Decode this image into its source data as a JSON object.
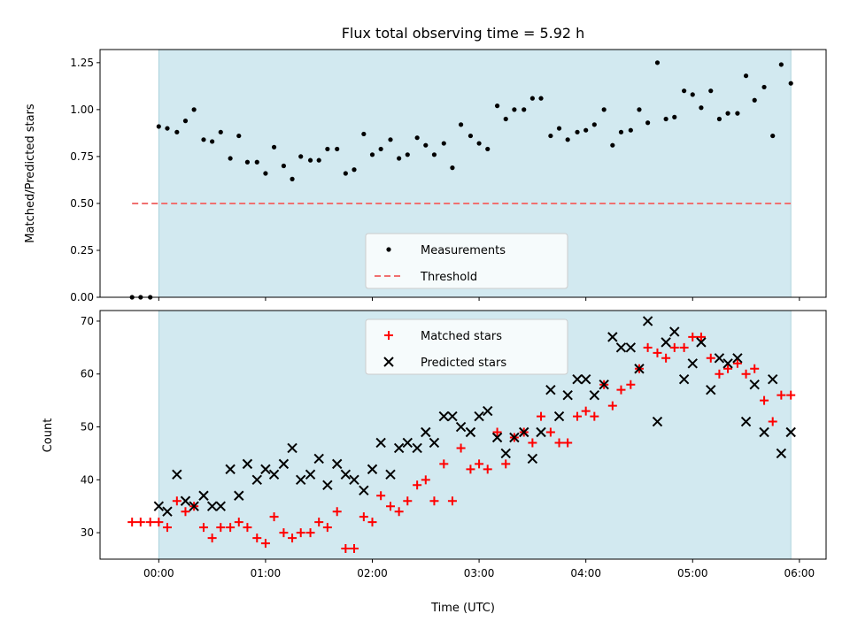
{
  "chart_data": [
    {
      "type": "scatter",
      "title": "Flux total observing time = 5.92 h",
      "xlabel": "",
      "ylabel": "Matched/Predicted stars",
      "xlim": [
        -0.55,
        6.25
      ],
      "ylim": [
        0.0,
        1.32
      ],
      "yticks": [
        0.0,
        0.25,
        0.5,
        0.75,
        1.0,
        1.25
      ],
      "ytick_labels": [
        "0.00",
        "0.25",
        "0.50",
        "0.75",
        "1.00",
        "1.25"
      ],
      "xticks": [
        0,
        1,
        2,
        3,
        4,
        5,
        6
      ],
      "observing_window": [
        0.0,
        5.92
      ],
      "observing_window_color": "#d2e9f0",
      "legend_position": "lower center",
      "series": [
        {
          "name": "Measurements",
          "marker": "dot",
          "color": "#000000",
          "x": [
            -0.25,
            -0.17,
            -0.08,
            0.0,
            0.08,
            0.17,
            0.25,
            0.33,
            0.42,
            0.5,
            0.58,
            0.67,
            0.75,
            0.83,
            0.92,
            1.0,
            1.08,
            1.17,
            1.25,
            1.33,
            1.42,
            1.5,
            1.58,
            1.67,
            1.75,
            1.83,
            1.92,
            2.0,
            2.08,
            2.17,
            2.25,
            2.33,
            2.42,
            2.5,
            2.58,
            2.67,
            2.75,
            2.83,
            2.92,
            3.0,
            3.08,
            3.17,
            3.25,
            3.33,
            3.42,
            3.5,
            3.58,
            3.67,
            3.75,
            3.83,
            3.92,
            4.0,
            4.08,
            4.17,
            4.25,
            4.33,
            4.42,
            4.5,
            4.58,
            4.67,
            4.75,
            4.83,
            4.92,
            5.0,
            5.08,
            5.17,
            5.25,
            5.33,
            5.42,
            5.5,
            5.58,
            5.67,
            5.75,
            5.83,
            5.92
          ],
          "y": [
            0.0,
            0.0,
            0.0,
            0.91,
            0.9,
            0.88,
            0.94,
            1.0,
            0.84,
            0.83,
            0.88,
            0.74,
            0.86,
            0.72,
            0.72,
            0.66,
            0.8,
            0.7,
            0.63,
            0.75,
            0.73,
            0.73,
            0.79,
            0.79,
            0.66,
            0.68,
            0.87,
            0.76,
            0.79,
            0.84,
            0.74,
            0.76,
            0.85,
            0.81,
            0.76,
            0.82,
            0.69,
            0.92,
            0.86,
            0.82,
            0.79,
            1.02,
            0.95,
            1.0,
            1.0,
            1.06,
            1.06,
            0.86,
            0.9,
            0.84,
            0.88,
            0.89,
            0.92,
            1.0,
            0.81,
            0.88,
            0.89,
            1.0,
            0.93,
            1.25,
            0.95,
            0.96,
            1.1,
            1.08,
            1.01,
            1.1,
            0.95,
            0.98,
            0.98,
            1.18,
            1.05,
            1.12,
            0.86,
            1.24,
            1.14
          ]
        },
        {
          "name": "Threshold",
          "style": "dashed",
          "color": "#f07070",
          "x": [
            -0.25,
            5.92
          ],
          "y": [
            0.5,
            0.5
          ]
        }
      ]
    },
    {
      "type": "scatter",
      "title": "",
      "xlabel": "Time (UTC)",
      "ylabel": "Count",
      "xlim": [
        -0.55,
        6.25
      ],
      "ylim": [
        25,
        72
      ],
      "yticks": [
        30,
        40,
        50,
        60,
        70
      ],
      "ytick_labels": [
        "30",
        "40",
        "50",
        "60",
        "70"
      ],
      "xticks": [
        0,
        1,
        2,
        3,
        4,
        5,
        6
      ],
      "xtick_labels": [
        "00:00",
        "01:00",
        "02:00",
        "03:00",
        "04:00",
        "05:00",
        "06:00"
      ],
      "observing_window": [
        0.0,
        5.92
      ],
      "observing_window_color": "#d2e9f0",
      "legend_position": "upper center",
      "series": [
        {
          "name": "Matched stars",
          "marker": "plus",
          "color": "#ff0000",
          "x": [
            -0.25,
            -0.17,
            -0.08,
            0.0,
            0.08,
            0.17,
            0.25,
            0.33,
            0.42,
            0.5,
            0.58,
            0.67,
            0.75,
            0.83,
            0.92,
            1.0,
            1.08,
            1.17,
            1.25,
            1.33,
            1.42,
            1.5,
            1.58,
            1.67,
            1.75,
            1.83,
            1.92,
            2.0,
            2.08,
            2.17,
            2.25,
            2.33,
            2.42,
            2.5,
            2.58,
            2.67,
            2.75,
            2.83,
            2.92,
            3.0,
            3.08,
            3.17,
            3.25,
            3.33,
            3.42,
            3.5,
            3.58,
            3.67,
            3.75,
            3.83,
            3.92,
            4.0,
            4.08,
            4.17,
            4.25,
            4.33,
            4.42,
            4.5,
            4.58,
            4.67,
            4.75,
            4.83,
            4.92,
            5.0,
            5.08,
            5.17,
            5.25,
            5.33,
            5.42,
            5.5,
            5.58,
            5.67,
            5.75,
            5.83,
            5.92
          ],
          "y": [
            32,
            32,
            32,
            32,
            31,
            36,
            34,
            35,
            31,
            29,
            31,
            31,
            32,
            31,
            29,
            28,
            33,
            30,
            29,
            30,
            30,
            32,
            31,
            34,
            27,
            27,
            33,
            32,
            37,
            35,
            34,
            36,
            39,
            40,
            36,
            43,
            36,
            46,
            42,
            43,
            42,
            49,
            43,
            48,
            49,
            47,
            52,
            49,
            47,
            47,
            52,
            53,
            52,
            58,
            54,
            57,
            58,
            61,
            65,
            64,
            63,
            65,
            65,
            67,
            67,
            63,
            60,
            61,
            62,
            60,
            61,
            55,
            51,
            56,
            56
          ]
        },
        {
          "name": "Predicted stars",
          "marker": "x",
          "color": "#000000",
          "x": [
            0.0,
            0.08,
            0.17,
            0.25,
            0.33,
            0.42,
            0.5,
            0.58,
            0.67,
            0.75,
            0.83,
            0.92,
            1.0,
            1.08,
            1.17,
            1.25,
            1.33,
            1.42,
            1.5,
            1.58,
            1.67,
            1.75,
            1.83,
            1.92,
            2.0,
            2.08,
            2.17,
            2.25,
            2.33,
            2.42,
            2.5,
            2.58,
            2.67,
            2.75,
            2.83,
            2.92,
            3.0,
            3.08,
            3.17,
            3.25,
            3.33,
            3.42,
            3.5,
            3.58,
            3.67,
            3.75,
            3.83,
            3.92,
            4.0,
            4.08,
            4.17,
            4.25,
            4.33,
            4.42,
            4.5,
            4.58,
            4.67,
            4.75,
            4.83,
            4.92,
            5.0,
            5.08,
            5.17,
            5.25,
            5.33,
            5.42,
            5.5,
            5.58,
            5.67,
            5.75,
            5.83,
            5.92
          ],
          "y": [
            35,
            34,
            41,
            36,
            35,
            37,
            35,
            35,
            42,
            37,
            43,
            40,
            42,
            41,
            43,
            46,
            40,
            41,
            44,
            39,
            43,
            41,
            40,
            38,
            42,
            47,
            41,
            46,
            47,
            46,
            49,
            47,
            52,
            52,
            50,
            49,
            52,
            53,
            48,
            45,
            48,
            49,
            44,
            49,
            57,
            52,
            56,
            59,
            59,
            56,
            58,
            67,
            65,
            65,
            61,
            70,
            51,
            66,
            68,
            59,
            62,
            66,
            57,
            63,
            62,
            63,
            51,
            58,
            49,
            59,
            45,
            49
          ]
        }
      ]
    }
  ]
}
